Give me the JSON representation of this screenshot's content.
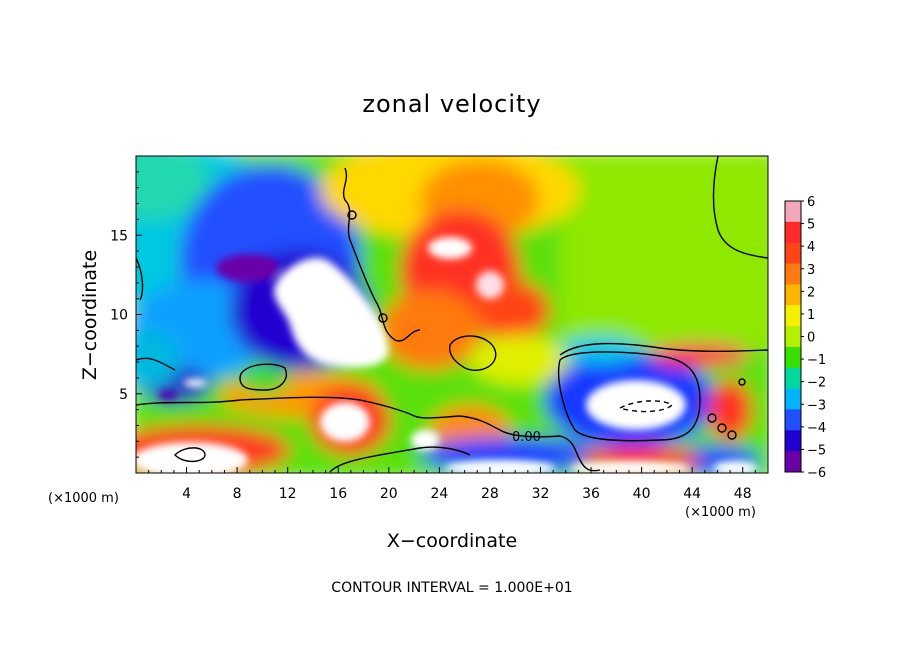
{
  "chart_data": {
    "type": "heatmap",
    "title": "zonal velocity",
    "xlabel": "X−coordinate",
    "ylabel": "Z−coordinate",
    "x_unit_left": "(×1000 m)",
    "x_unit_right": "(×1000 m)",
    "footer": "CONTOUR INTERVAL = 1.000E+01",
    "contour_label": "0.00",
    "xlim": [
      0,
      50
    ],
    "ylim": [
      0,
      20
    ],
    "x_ticks": [
      4,
      8,
      12,
      16,
      20,
      24,
      28,
      32,
      36,
      40,
      44,
      48
    ],
    "y_ticks": [
      5,
      10,
      15
    ],
    "colorbar": {
      "min": -6,
      "max": 6,
      "tick_labels": [
        "6",
        "5",
        "4",
        "3",
        "2",
        "1",
        "0",
        "−1",
        "−2",
        "−3",
        "−4",
        "−5",
        "−6"
      ],
      "colors": [
        "#f2a8b8",
        "#ff2a2a",
        "#ff4418",
        "#ff7a10",
        "#ffb400",
        "#f2f200",
        "#b4f000",
        "#38e000",
        "#00d8a0",
        "#00b4ff",
        "#2050ff",
        "#2000d0",
        "#6a00a8"
      ]
    },
    "legend_position": "right",
    "grid": false
  }
}
